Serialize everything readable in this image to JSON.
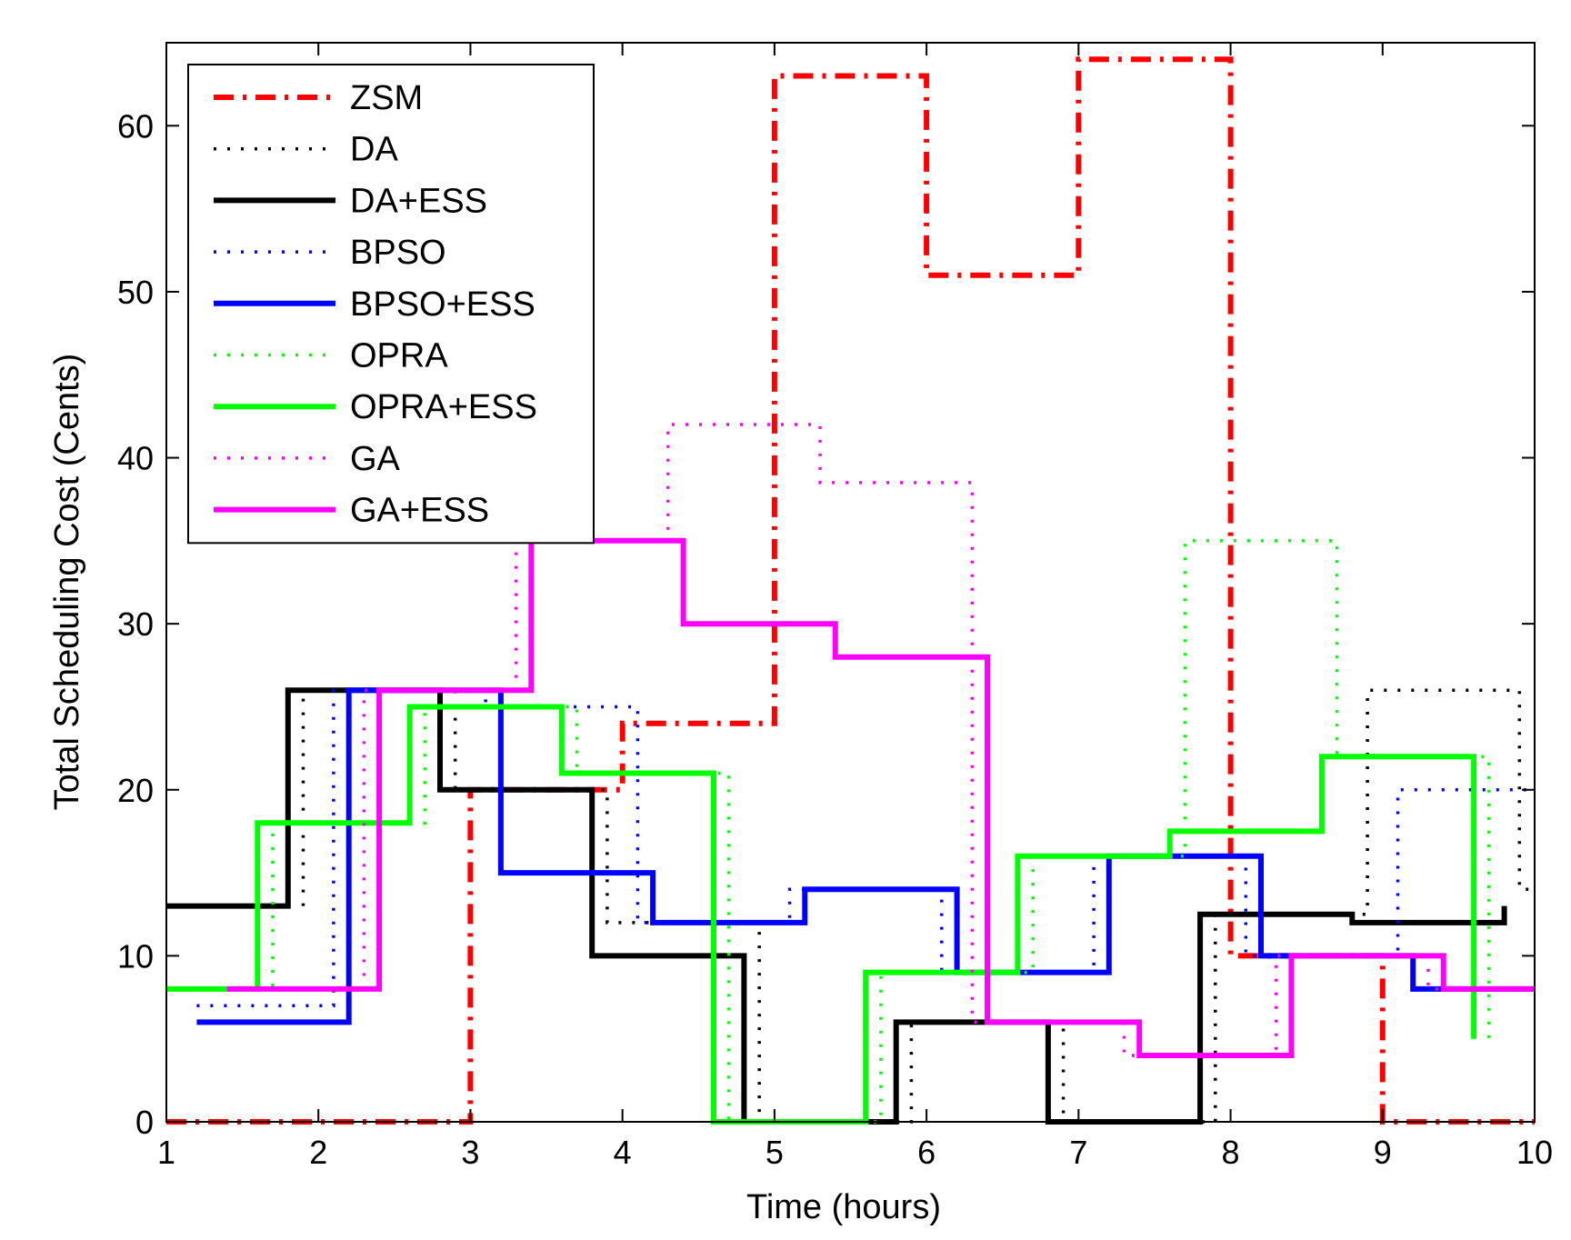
{
  "chart_data": {
    "type": "line",
    "step": true,
    "title": "",
    "xlabel": "Time (hours)",
    "ylabel": "Total Scheduling Cost (Cents)",
    "xlim": [
      1,
      10
    ],
    "ylim": [
      0,
      65
    ],
    "xticks": [
      1,
      2,
      3,
      4,
      5,
      6,
      7,
      8,
      9,
      10
    ],
    "yticks": [
      0,
      10,
      20,
      30,
      40,
      50,
      60
    ],
    "grid": false,
    "legend_position": "top-left",
    "series": [
      {
        "name": "ZSM",
        "color": "#ff0000",
        "style": "dashdot",
        "width": "thick",
        "x": [
          1,
          3,
          3,
          4,
          4,
          5,
          5,
          6,
          6,
          7,
          7,
          8,
          8,
          9,
          9,
          10
        ],
        "y": [
          0,
          0,
          20,
          20,
          24,
          24,
          63,
          63,
          51,
          51,
          64,
          64,
          10,
          10,
          0,
          0
        ]
      },
      {
        "name": "DA",
        "color": "#000000",
        "style": "dotted",
        "width": "thin",
        "x": [
          1.9,
          1.9,
          2.9,
          2.9,
          3.9,
          3.9,
          4.9,
          4.9,
          5.9,
          5.9,
          6.9,
          6.9,
          7.9,
          7.9,
          8.9,
          8.9,
          9.9,
          9.9,
          10
        ],
        "y": [
          13,
          26,
          26,
          20,
          20,
          12,
          12,
          0,
          0,
          6,
          6,
          0,
          0,
          12.5,
          12.5,
          26,
          26,
          14,
          14
        ]
      },
      {
        "name": "DA+ESS",
        "color": "#000000",
        "style": "solid",
        "width": "thick",
        "x": [
          1,
          1.8,
          1.8,
          2.8,
          2.8,
          3.8,
          3.8,
          4.8,
          4.8,
          5.8,
          5.8,
          6.8,
          6.8,
          7.8,
          7.8,
          8.8,
          8.8,
          9.8,
          9.8
        ],
        "y": [
          13,
          13,
          26,
          26,
          20,
          20,
          10,
          10,
          0,
          0,
          6,
          6,
          0,
          0,
          12.5,
          12.5,
          12,
          12,
          13
        ]
      },
      {
        "name": "BPSO",
        "color": "#0000ff",
        "style": "dotted",
        "width": "thin",
        "x": [
          1.2,
          2.1,
          2.1,
          3.1,
          3.1,
          4.1,
          4.1,
          5.1,
          5.1,
          6.1,
          6.1,
          7.1,
          7.1,
          8.1,
          8.1,
          9.1,
          9.1,
          10
        ],
        "y": [
          7,
          7,
          26,
          26,
          25,
          25,
          12,
          12,
          14,
          14,
          9,
          9,
          16,
          16,
          10,
          10,
          20,
          20
        ]
      },
      {
        "name": "BPSO+ESS",
        "color": "#0000ff",
        "style": "solid",
        "width": "thick",
        "x": [
          1.2,
          2.2,
          2.2,
          3.2,
          3.2,
          4.2,
          4.2,
          5.2,
          5.2,
          6.2,
          6.2,
          7.2,
          7.2,
          8.2,
          8.2,
          9.2,
          9.2,
          10
        ],
        "y": [
          6,
          6,
          26,
          26,
          15,
          15,
          12,
          12,
          14,
          14,
          9,
          9,
          16,
          16,
          10,
          10,
          8,
          8
        ]
      },
      {
        "name": "OPRA",
        "color": "#00ff00",
        "style": "dotted",
        "width": "thin",
        "x": [
          1,
          1.7,
          1.7,
          2.7,
          2.7,
          3.7,
          3.7,
          4.7,
          4.7,
          5.7,
          5.7,
          6.7,
          6.7,
          7.7,
          7.7,
          8.7,
          8.7,
          9.7,
          9.7
        ],
        "y": [
          8,
          8,
          18,
          18,
          25,
          25,
          21,
          21,
          0,
          0,
          9,
          9,
          16,
          16,
          35,
          35,
          22,
          22,
          5
        ]
      },
      {
        "name": "OPRA+ESS",
        "color": "#00ff00",
        "style": "solid",
        "width": "thick",
        "x": [
          1,
          1.6,
          1.6,
          2.6,
          2.6,
          3.6,
          3.6,
          4.6,
          4.6,
          5.6,
          5.6,
          6.6,
          6.6,
          7.6,
          7.6,
          8.6,
          8.6,
          9.6,
          9.6
        ],
        "y": [
          8,
          8,
          18,
          18,
          25,
          25,
          21,
          21,
          0,
          0,
          9,
          9,
          16,
          16,
          17.5,
          17.5,
          22,
          22,
          5
        ]
      },
      {
        "name": "GA",
        "color": "#ff00ff",
        "style": "dotted",
        "width": "thin",
        "x": [
          1.4,
          2.3,
          2.3,
          3.3,
          3.3,
          4.3,
          4.3,
          5.3,
          5.3,
          6.3,
          6.3,
          7.3,
          7.3,
          8.3,
          8.3,
          9.3,
          9.3,
          10
        ],
        "y": [
          8,
          8,
          26,
          26,
          35,
          35,
          42,
          42,
          38.5,
          38.5,
          6,
          6,
          4,
          4,
          10,
          10,
          8,
          8
        ]
      },
      {
        "name": "GA+ESS",
        "color": "#ff00ff",
        "style": "solid",
        "width": "thick",
        "x": [
          1.4,
          2.4,
          2.4,
          3.4,
          3.4,
          4.4,
          4.4,
          5.4,
          5.4,
          6.4,
          6.4,
          7.4,
          7.4,
          8.4,
          8.4,
          9.4,
          9.4,
          10
        ],
        "y": [
          8,
          8,
          26,
          26,
          35,
          35,
          30,
          30,
          28,
          28,
          6,
          6,
          4,
          4,
          10,
          10,
          8,
          8
        ]
      }
    ]
  }
}
